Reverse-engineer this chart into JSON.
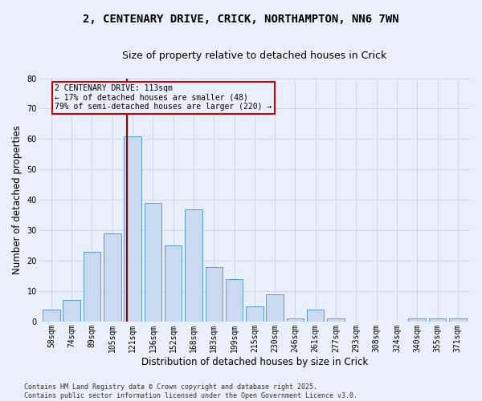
{
  "title_line1": "2, CENTENARY DRIVE, CRICK, NORTHAMPTON, NN6 7WN",
  "title_line2": "Size of property relative to detached houses in Crick",
  "xlabel": "Distribution of detached houses by size in Crick",
  "ylabel": "Number of detached properties",
  "categories": [
    "58sqm",
    "74sqm",
    "89sqm",
    "105sqm",
    "121sqm",
    "136sqm",
    "152sqm",
    "168sqm",
    "183sqm",
    "199sqm",
    "215sqm",
    "230sqm",
    "246sqm",
    "261sqm",
    "277sqm",
    "293sqm",
    "308sqm",
    "324sqm",
    "340sqm",
    "355sqm",
    "371sqm"
  ],
  "values": [
    4,
    7,
    23,
    29,
    61,
    39,
    25,
    37,
    18,
    14,
    5,
    9,
    1,
    4,
    1,
    0,
    0,
    0,
    1,
    1,
    1
  ],
  "bar_color": "#c9d9f0",
  "bar_edge_color": "#5b9bd5",
  "grid_color": "#d0d8e8",
  "background_color": "#eaf0fb",
  "vline_x": 3.72,
  "vline_color": "#990000",
  "annotation_text": "2 CENTENARY DRIVE: 113sqm\n← 17% of detached houses are smaller (48)\n79% of semi-detached houses are larger (220) →",
  "annotation_box_color": "#cc0000",
  "ylim": [
    0,
    80
  ],
  "yticks": [
    0,
    10,
    20,
    30,
    40,
    50,
    60,
    70,
    80
  ],
  "footer_line1": "Contains HM Land Registry data © Crown copyright and database right 2025.",
  "footer_line2": "Contains public sector information licensed under the Open Government Licence v3.0.",
  "title_fontsize": 10,
  "subtitle_fontsize": 9,
  "tick_fontsize": 7,
  "ylabel_fontsize": 8.5,
  "xlabel_fontsize": 8.5,
  "annotation_fontsize": 7,
  "footer_fontsize": 6
}
